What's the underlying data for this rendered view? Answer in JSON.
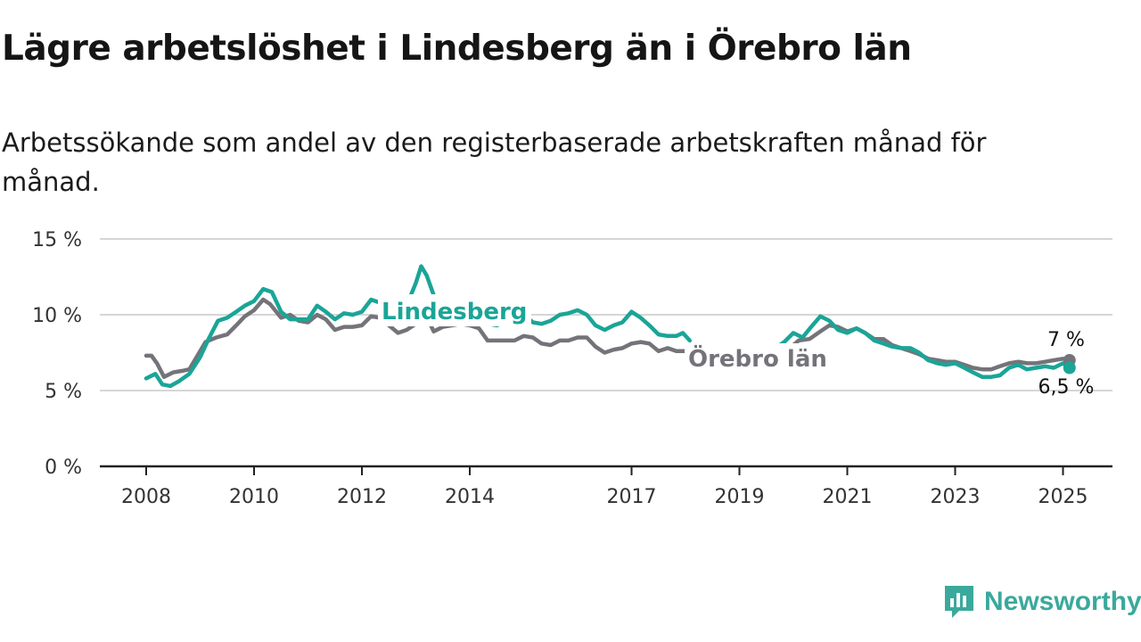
{
  "title": "Lägre arbetslöshet i Lindesberg än i Örebro län",
  "subtitle": "Arbetssökande som andel av den registerbaserade arbetskraften månad för månad.",
  "brand": {
    "name": "Newsworthy",
    "icon": "newsworthy-logo-icon",
    "color": "#3aa99c"
  },
  "colors": {
    "accent": "#1aa597",
    "secondary": "#75737a",
    "grid": "#d6d6d6",
    "axis": "#222222"
  },
  "chart_data": {
    "type": "line",
    "xlabel": "",
    "ylabel": "",
    "ylim": [
      0,
      15
    ],
    "xlim": [
      2008,
      2025.5
    ],
    "y_ticks": [
      0,
      5,
      10,
      15
    ],
    "y_tick_labels": [
      "0 %",
      "5 %",
      "10 %",
      "15 %"
    ],
    "x_ticks": [
      2008,
      2010,
      2012,
      2014,
      2017,
      2019,
      2021,
      2023,
      2025
    ],
    "x_tick_labels": [
      "2008",
      "2010",
      "2012",
      "2014",
      "2017",
      "2019",
      "2021",
      "2023",
      "2025"
    ],
    "grid": true,
    "series": [
      {
        "name": "Örebro län",
        "color": "#75737a",
        "end_label": "7 %",
        "segments": [
          [
            [
              2008.0,
              7.3
            ],
            [
              2008.1,
              7.3
            ],
            [
              2008.2,
              6.8
            ],
            [
              2008.33,
              5.9
            ],
            [
              2008.5,
              6.2
            ],
            [
              2008.67,
              6.3
            ],
            [
              2008.8,
              6.4
            ],
            [
              2008.95,
              7.3
            ],
            [
              2009.1,
              8.2
            ],
            [
              2009.3,
              8.5
            ],
            [
              2009.5,
              8.7
            ],
            [
              2009.67,
              9.3
            ],
            [
              2009.83,
              9.9
            ],
            [
              2010.0,
              10.3
            ],
            [
              2010.17,
              11.0
            ],
            [
              2010.3,
              10.7
            ],
            [
              2010.5,
              9.8
            ],
            [
              2010.67,
              10.0
            ],
            [
              2010.83,
              9.6
            ],
            [
              2011.0,
              9.5
            ],
            [
              2011.17,
              10.0
            ],
            [
              2011.33,
              9.7
            ],
            [
              2011.5,
              9.0
            ],
            [
              2011.67,
              9.2
            ],
            [
              2011.83,
              9.2
            ],
            [
              2012.0,
              9.3
            ],
            [
              2012.17,
              9.9
            ],
            [
              2012.33,
              9.8
            ],
            [
              2012.5,
              9.3
            ],
            [
              2012.67,
              8.8
            ],
            [
              2012.83,
              9.0
            ],
            [
              2013.0,
              9.4
            ],
            [
              2013.2,
              9.9
            ],
            [
              2013.33,
              8.9
            ],
            [
              2013.5,
              9.2
            ],
            [
              2013.67,
              9.3
            ],
            [
              2013.83,
              9.4
            ],
            [
              2014.0,
              9.3
            ],
            [
              2014.17,
              9.1
            ],
            [
              2014.33,
              8.3
            ],
            [
              2014.5,
              8.3
            ],
            [
              2014.67,
              8.3
            ],
            [
              2014.83,
              8.3
            ],
            [
              2015.0,
              8.6
            ],
            [
              2015.17,
              8.5
            ],
            [
              2015.33,
              8.1
            ],
            [
              2015.5,
              8.0
            ],
            [
              2015.67,
              8.3
            ],
            [
              2015.83,
              8.3
            ],
            [
              2016.0,
              8.5
            ],
            [
              2016.17,
              8.5
            ],
            [
              2016.33,
              7.9
            ],
            [
              2016.5,
              7.5
            ],
            [
              2016.67,
              7.7
            ],
            [
              2016.83,
              7.8
            ],
            [
              2017.0,
              8.1
            ],
            [
              2017.17,
              8.2
            ],
            [
              2017.33,
              8.1
            ],
            [
              2017.5,
              7.6
            ],
            [
              2017.67,
              7.8
            ],
            [
              2017.83,
              7.6
            ],
            [
              2018.0,
              7.6
            ],
            [
              2018.1,
              7.7
            ],
            [
              2018.17,
              7.8
            ]
          ],
          [
            [
              2020.0,
              8.0
            ],
            [
              2020.1,
              8.3
            ],
            [
              2020.3,
              8.4
            ],
            [
              2020.5,
              8.9
            ],
            [
              2020.67,
              9.3
            ],
            [
              2020.83,
              9.2
            ],
            [
              2021.0,
              8.9
            ],
            [
              2021.17,
              9.1
            ],
            [
              2021.33,
              8.8
            ],
            [
              2021.5,
              8.4
            ],
            [
              2021.67,
              8.4
            ],
            [
              2021.83,
              8.0
            ],
            [
              2022.0,
              7.8
            ],
            [
              2022.17,
              7.6
            ],
            [
              2022.33,
              7.4
            ],
            [
              2022.5,
              7.1
            ],
            [
              2022.67,
              7.0
            ],
            [
              2022.83,
              6.9
            ],
            [
              2023.0,
              6.9
            ],
            [
              2023.17,
              6.7
            ],
            [
              2023.33,
              6.5
            ],
            [
              2023.5,
              6.4
            ],
            [
              2023.67,
              6.4
            ],
            [
              2023.83,
              6.6
            ],
            [
              2024.0,
              6.8
            ],
            [
              2024.17,
              6.9
            ],
            [
              2024.33,
              6.8
            ],
            [
              2024.5,
              6.8
            ],
            [
              2024.67,
              6.9
            ],
            [
              2024.83,
              7.0
            ],
            [
              2025.0,
              7.1
            ],
            [
              2025.12,
              7.0
            ]
          ]
        ]
      },
      {
        "name": "Lindesberg",
        "color": "#1aa597",
        "end_label": "6,5 %",
        "segments": [
          [
            [
              2008.0,
              5.8
            ],
            [
              2008.17,
              6.1
            ],
            [
              2008.3,
              5.4
            ],
            [
              2008.45,
              5.3
            ],
            [
              2008.6,
              5.6
            ],
            [
              2008.8,
              6.1
            ],
            [
              2009.0,
              7.2
            ],
            [
              2009.17,
              8.5
            ],
            [
              2009.33,
              9.6
            ],
            [
              2009.5,
              9.8
            ],
            [
              2009.67,
              10.2
            ],
            [
              2009.83,
              10.6
            ],
            [
              2010.0,
              10.9
            ],
            [
              2010.17,
              11.7
            ],
            [
              2010.33,
              11.5
            ],
            [
              2010.5,
              10.2
            ],
            [
              2010.67,
              9.7
            ],
            [
              2010.83,
              9.7
            ],
            [
              2011.0,
              9.7
            ],
            [
              2011.17,
              10.6
            ],
            [
              2011.33,
              10.2
            ],
            [
              2011.5,
              9.7
            ],
            [
              2011.67,
              10.1
            ],
            [
              2011.83,
              10.0
            ],
            [
              2012.0,
              10.2
            ],
            [
              2012.17,
              11.0
            ],
            [
              2012.33,
              10.8
            ],
            [
              2012.5,
              10.0
            ],
            [
              2012.67,
              9.4
            ],
            [
              2012.83,
              10.6
            ],
            [
              2013.0,
              12.1
            ],
            [
              2013.1,
              13.2
            ],
            [
              2013.2,
              12.6
            ],
            [
              2013.33,
              11.3
            ],
            [
              2013.5,
              10.3
            ],
            [
              2013.67,
              9.7
            ],
            [
              2014.0,
              9.7
            ],
            [
              2014.17,
              9.6
            ],
            [
              2014.33,
              9.4
            ],
            [
              2014.5,
              9.3
            ],
            [
              2014.67,
              9.5
            ],
            [
              2014.83,
              9.5
            ],
            [
              2015.0,
              10.0
            ],
            [
              2015.17,
              9.5
            ],
            [
              2015.33,
              9.4
            ],
            [
              2015.5,
              9.6
            ],
            [
              2015.67,
              10.0
            ],
            [
              2015.83,
              10.1
            ],
            [
              2016.0,
              10.3
            ],
            [
              2016.17,
              10.0
            ],
            [
              2016.33,
              9.3
            ],
            [
              2016.5,
              9.0
            ],
            [
              2016.67,
              9.3
            ],
            [
              2016.83,
              9.5
            ],
            [
              2017.0,
              10.2
            ],
            [
              2017.17,
              9.8
            ],
            [
              2017.33,
              9.3
            ],
            [
              2017.5,
              8.7
            ],
            [
              2017.67,
              8.6
            ],
            [
              2017.83,
              8.6
            ],
            [
              2017.95,
              8.8
            ],
            [
              2018.08,
              8.3
            ]
          ],
          [
            [
              2019.67,
              7.8
            ],
            [
              2019.83,
              8.2
            ],
            [
              2020.0,
              8.8
            ],
            [
              2020.17,
              8.5
            ],
            [
              2020.33,
              9.2
            ],
            [
              2020.5,
              9.9
            ],
            [
              2020.67,
              9.6
            ],
            [
              2020.83,
              9.0
            ],
            [
              2021.0,
              8.8
            ],
            [
              2021.17,
              9.1
            ],
            [
              2021.33,
              8.8
            ],
            [
              2021.5,
              8.3
            ],
            [
              2021.67,
              8.1
            ],
            [
              2021.83,
              7.9
            ],
            [
              2022.0,
              7.8
            ],
            [
              2022.17,
              7.8
            ],
            [
              2022.33,
              7.5
            ],
            [
              2022.5,
              7.0
            ],
            [
              2022.67,
              6.8
            ],
            [
              2022.83,
              6.7
            ],
            [
              2023.0,
              6.8
            ],
            [
              2023.17,
              6.5
            ],
            [
              2023.33,
              6.2
            ],
            [
              2023.5,
              5.9
            ],
            [
              2023.67,
              5.9
            ],
            [
              2023.83,
              6.0
            ],
            [
              2024.0,
              6.5
            ],
            [
              2024.17,
              6.7
            ],
            [
              2024.33,
              6.4
            ],
            [
              2024.5,
              6.5
            ],
            [
              2024.67,
              6.6
            ],
            [
              2024.83,
              6.5
            ],
            [
              2025.0,
              6.8
            ],
            [
              2025.12,
              6.5
            ]
          ]
        ]
      }
    ]
  }
}
